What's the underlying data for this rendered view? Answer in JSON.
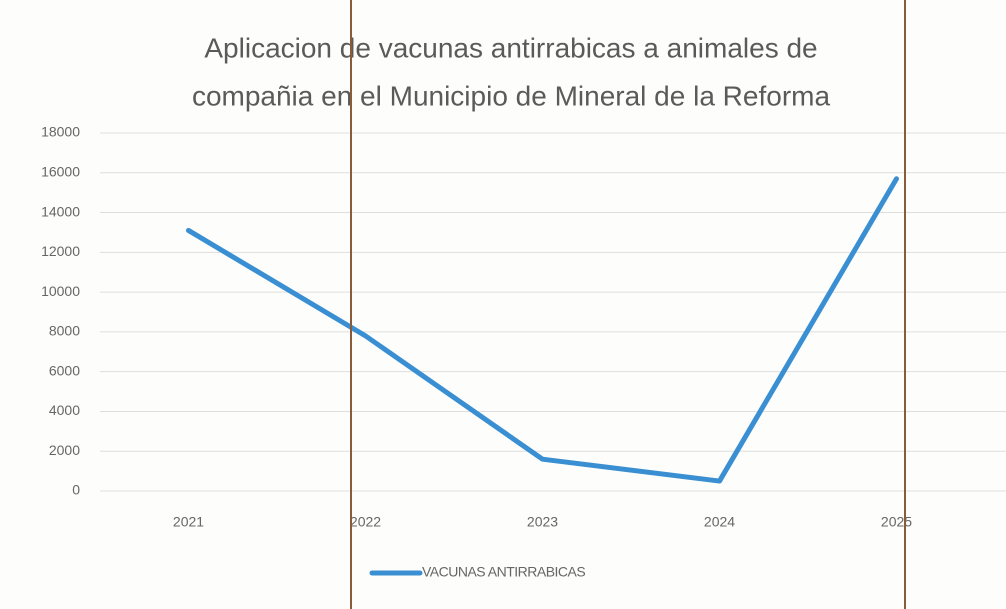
{
  "chart_data": {
    "type": "line",
    "title": [
      "Aplicacion de vacunas antirrabicas a animales de",
      "compañia en el Municipio de Mineral de la Reforma"
    ],
    "categories": [
      "2021",
      "2022",
      "2023",
      "2024",
      "2025"
    ],
    "series": [
      {
        "name": "VACUNAS ANTIRRABICAS",
        "color": "#3a8fd2",
        "values": [
          13100,
          7800,
          1600,
          500,
          15700
        ]
      }
    ],
    "ylim": [
      0,
      18000
    ],
    "yticks": [
      0,
      2000,
      4000,
      6000,
      8000,
      10000,
      12000,
      14000,
      16000,
      18000
    ],
    "grid": true,
    "legend": "bottom"
  }
}
